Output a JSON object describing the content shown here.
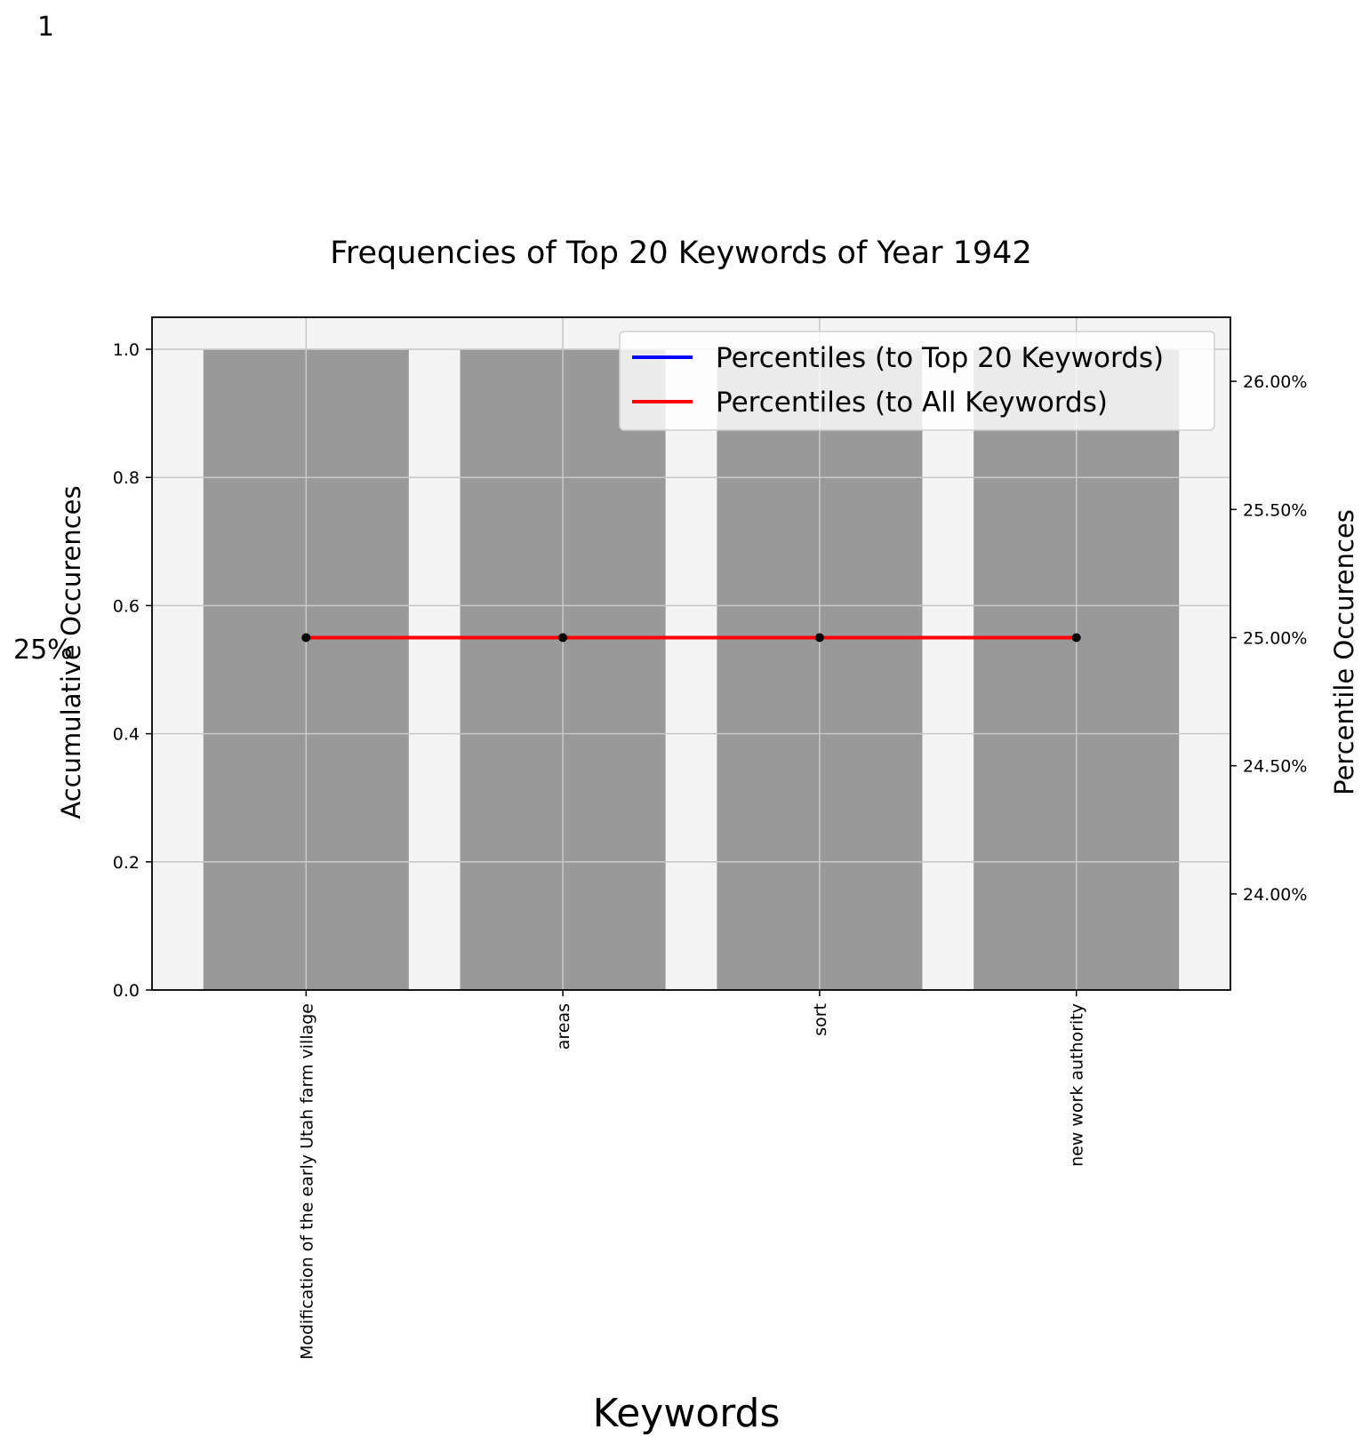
{
  "corner_label": "1",
  "chart_data": {
    "type": "bar",
    "title": "Frequencies of Top 20 Keywords of Year 1942",
    "xlabel": "Keywords",
    "ylabel": "Accumulative Occurences",
    "y2label": "Percentile Occurences",
    "categories": [
      "Modification of the early Utah farm village",
      "areas",
      "sort",
      "new work authority"
    ],
    "values": [
      1,
      1,
      1,
      1
    ],
    "ylim": [
      0,
      1.05
    ],
    "yticks": [
      0.0,
      0.2,
      0.4,
      0.6,
      0.8,
      1.0
    ],
    "y2lim": [
      23.625,
      26.25
    ],
    "y2ticks": [
      24.0,
      24.5,
      25.0,
      25.5,
      26.0
    ],
    "y2tick_labels": [
      "24.00%",
      "24.50%",
      "25.00%",
      "25.50%",
      "26.00%"
    ],
    "lines": [
      {
        "name": "Percentiles (to Top 20 Keywords)",
        "color": "#0000ff",
        "values": [
          25,
          25,
          25,
          25
        ]
      },
      {
        "name": "Percentiles (to All Keywords)",
        "color": "#ff0000",
        "values": [
          25,
          25,
          25,
          25
        ]
      }
    ],
    "annotation": {
      "text": "25%",
      "color": "#e8000b"
    },
    "bar_color": "#999999",
    "plot_background": "#f4f4f4",
    "grid": true,
    "legend_position": "top-right"
  }
}
